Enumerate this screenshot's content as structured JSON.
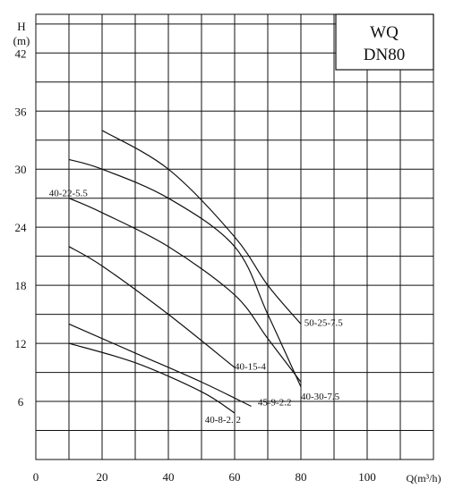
{
  "chart_data": {
    "type": "line",
    "title_box": {
      "line1": "WQ",
      "line2": "DN80"
    },
    "ylabel_top": "H",
    "ylabel_unit": "(m)",
    "xlabel": "Q(m³/h)",
    "xlim": [
      0,
      120
    ],
    "ylim": [
      0,
      46
    ],
    "x_ticks": [
      {
        "value": 0,
        "label": "0"
      },
      {
        "value": 20,
        "label": "20"
      },
      {
        "value": 40,
        "label": "40"
      },
      {
        "value": 60,
        "label": "60"
      },
      {
        "value": 80,
        "label": "80"
      },
      {
        "value": 100,
        "label": "100"
      }
    ],
    "y_ticks": [
      {
        "value": 6,
        "label": "6"
      },
      {
        "value": 12,
        "label": "12"
      },
      {
        "value": 18,
        "label": "18"
      },
      {
        "value": 24,
        "label": "24"
      },
      {
        "value": 30,
        "label": "30"
      },
      {
        "value": 36,
        "label": "36"
      },
      {
        "value": 42,
        "label": "42"
      }
    ],
    "series": [
      {
        "name": "50-25-7.5",
        "points": [
          [
            20,
            34
          ],
          [
            40,
            30
          ],
          [
            60,
            23
          ],
          [
            70,
            18
          ],
          [
            80,
            14
          ]
        ]
      },
      {
        "name": "40-30-7.5",
        "points": [
          [
            10,
            31
          ],
          [
            20,
            30
          ],
          [
            40,
            27
          ],
          [
            60,
            22
          ],
          [
            70,
            15
          ],
          [
            80,
            7.5
          ]
        ]
      },
      {
        "name": "40-22-5.5",
        "points": [
          [
            10,
            27
          ],
          [
            20,
            25.5
          ],
          [
            40,
            22
          ],
          [
            60,
            17
          ],
          [
            70,
            12.5
          ],
          [
            80,
            8
          ]
        ]
      },
      {
        "name": "40-15-4",
        "points": [
          [
            10,
            22
          ],
          [
            20,
            20
          ],
          [
            40,
            15
          ],
          [
            60,
            9.5
          ]
        ]
      },
      {
        "name": "45-9-2.2",
        "points": [
          [
            10,
            14
          ],
          [
            30,
            11
          ],
          [
            50,
            8
          ],
          [
            65,
            5.5
          ]
        ]
      },
      {
        "name": "40-8-2.2",
        "points": [
          [
            10,
            12
          ],
          [
            30,
            10
          ],
          [
            50,
            7
          ],
          [
            60,
            4.8
          ]
        ]
      }
    ],
    "curve_labels": [
      {
        "text": "50-25-7.5",
        "x": 81,
        "y": 13.8
      },
      {
        "text": "40-30-7.5",
        "x": 80,
        "y": 6.2
      },
      {
        "text": "40-22-5.5",
        "x": 4,
        "y": 27.2
      },
      {
        "text": "40-15-4",
        "x": 60,
        "y": 9.3
      },
      {
        "text": "45-9-2.2",
        "x": 67,
        "y": 5.6
      },
      {
        "text": "40-8-2. 2",
        "x": 51,
        "y": 3.8
      }
    ],
    "grid": true,
    "line_color": "#111111"
  }
}
